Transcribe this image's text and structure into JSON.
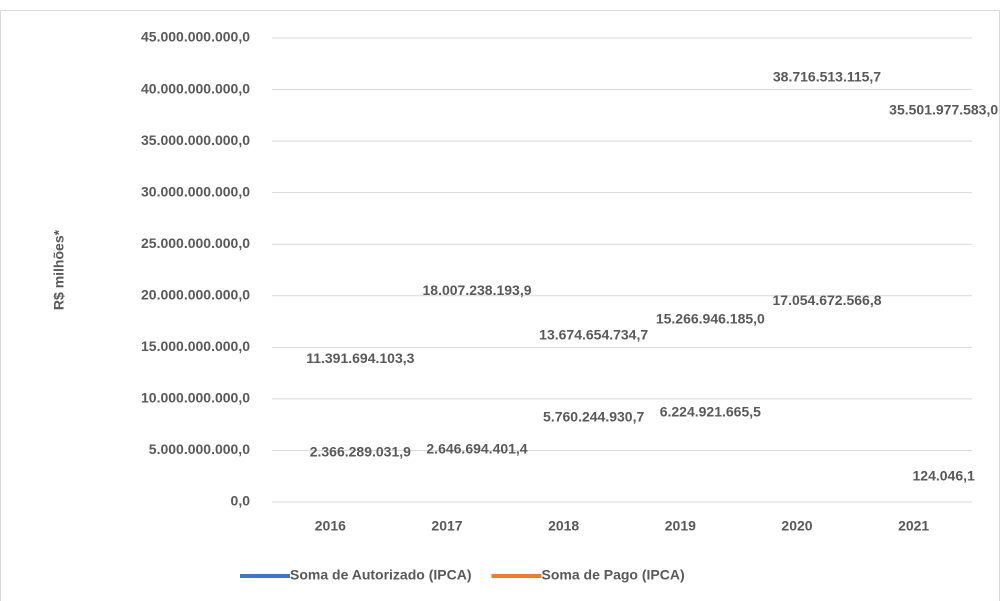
{
  "chart_data": {
    "type": "line",
    "y_label": "R$ milhões*",
    "categories": [
      "2016",
      "2017",
      "2018",
      "2019",
      "2020",
      "2021"
    ],
    "series": [
      {
        "name": "Soma de Autorizado (IPCA)",
        "color": "#4472c4",
        "values": [
          11391694103.3,
          18007238193.9,
          13674654734.7,
          15266946185.0,
          38716513115.7,
          35501977583.0
        ],
        "value_labels": [
          "11.391.694.103,3",
          "18.007.238.193,9",
          "13.674.654.734,7",
          "15.266.946.185,0",
          "38.716.513.115,7",
          "35.501.977.583,0"
        ]
      },
      {
        "name": "Soma de Pago (IPCA)",
        "color": "#ed7d31",
        "values": [
          2366289031.9,
          2646694401.4,
          5760244930.7,
          6224921665.5,
          17054672566.8,
          124046.1
        ],
        "value_labels": [
          "2.366.289.031,9",
          "2.646.694.401,4",
          "5.760.244.930,7",
          "6.224.921.665,5",
          "17.054.672.566,8",
          "124.046,1"
        ]
      }
    ],
    "ylim": [
      0,
      45000000000
    ],
    "yticks": [
      {
        "value": 0,
        "label": "0,0"
      },
      {
        "value": 5000000000,
        "label": "5.000.000.000,0"
      },
      {
        "value": 10000000000,
        "label": "10.000.000.000,0"
      },
      {
        "value": 15000000000,
        "label": "15.000.000.000,0"
      },
      {
        "value": 20000000000,
        "label": "20.000.000.000,0"
      },
      {
        "value": 25000000000,
        "label": "25.000.000.000,0"
      },
      {
        "value": 30000000000,
        "label": "30.000.000.000,0"
      },
      {
        "value": 35000000000,
        "label": "35.000.000.000,0"
      },
      {
        "value": 40000000000,
        "label": "40.000.000.000,0"
      },
      {
        "value": 45000000000,
        "label": "45.000.000.000,0"
      }
    ],
    "grid": true,
    "legend": "bottom"
  }
}
